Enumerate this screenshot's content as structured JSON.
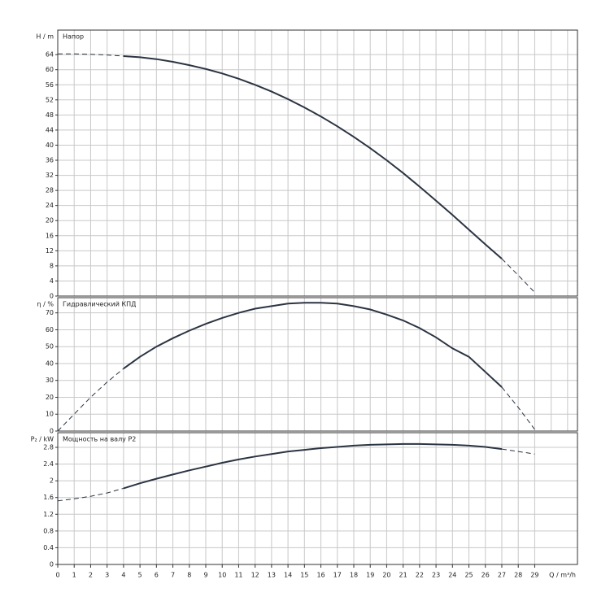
{
  "chart_data": [
    {
      "type": "line",
      "title": "Напор",
      "ylabel": "H / m",
      "color": "#2b3442",
      "x": [
        0,
        1,
        2,
        3,
        4,
        5,
        6,
        7,
        8,
        9,
        10,
        11,
        12,
        13,
        14,
        15,
        16,
        17,
        18,
        19,
        20,
        21,
        22,
        23,
        24,
        25,
        26,
        27,
        28,
        29
      ],
      "values": [
        64.2,
        64.2,
        64.1,
        63.9,
        63.6,
        63.3,
        62.8,
        62.1,
        61.2,
        60.2,
        59.0,
        57.6,
        56.0,
        54.2,
        52.2,
        50.0,
        47.6,
        45.0,
        42.2,
        39.2,
        36.0,
        32.6,
        29.0,
        25.3,
        21.5,
        17.6,
        13.7,
        9.9,
        5.5,
        1.0
      ],
      "solid_xrange": [
        4,
        27
      ],
      "xlim": [
        0,
        31.6
      ],
      "xticks": [
        0,
        1,
        2,
        3,
        4,
        5,
        6,
        7,
        8,
        9,
        10,
        11,
        12,
        13,
        14,
        15,
        16,
        17,
        18,
        19,
        20,
        21,
        22,
        23,
        24,
        25,
        26,
        27,
        28,
        29,
        30,
        31
      ],
      "ylim": [
        0,
        70.5
      ],
      "yticks": [
        0,
        4,
        8,
        12,
        16,
        20,
        24,
        28,
        32,
        36,
        40,
        44,
        48,
        52,
        56,
        60,
        64
      ],
      "grid": true
    },
    {
      "type": "line",
      "title": "Гидравлический КПД",
      "ylabel": "η / %",
      "color": "#2b3442",
      "x": [
        0,
        1,
        2,
        3,
        4,
        5,
        6,
        7,
        8,
        9,
        10,
        11,
        12,
        13,
        14,
        15,
        16,
        17,
        18,
        19,
        20,
        21,
        22,
        23,
        24,
        25,
        26,
        27,
        28,
        29
      ],
      "values": [
        0,
        10,
        20,
        29,
        37,
        44,
        50,
        55,
        59.5,
        63.5,
        67,
        70,
        72.5,
        74,
        75.5,
        76,
        76,
        75.5,
        74,
        72,
        69,
        65.5,
        61,
        55.5,
        49,
        44,
        35,
        26,
        14,
        1
      ],
      "solid_xrange": [
        4,
        27
      ],
      "xlim": [
        0,
        31.6
      ],
      "xticks": [
        0,
        1,
        2,
        3,
        4,
        5,
        6,
        7,
        8,
        9,
        10,
        11,
        12,
        13,
        14,
        15,
        16,
        17,
        18,
        19,
        20,
        21,
        22,
        23,
        24,
        25,
        26,
        27,
        28,
        29,
        30,
        31
      ],
      "ylim": [
        0,
        79
      ],
      "yticks": [
        0,
        10,
        20,
        30,
        40,
        50,
        60,
        70
      ],
      "grid": true
    },
    {
      "type": "line",
      "title": "Мощность на валу P2",
      "ylabel": "P₂ / kW",
      "xlabel": "Q / m³/h",
      "color": "#2b3442",
      "x": [
        0,
        1,
        2,
        3,
        4,
        5,
        6,
        7,
        8,
        9,
        10,
        11,
        12,
        13,
        14,
        15,
        16,
        17,
        18,
        19,
        20,
        21,
        22,
        23,
        24,
        25,
        26,
        27,
        28,
        29
      ],
      "values": [
        1.52,
        1.57,
        1.63,
        1.71,
        1.82,
        1.94,
        2.05,
        2.15,
        2.25,
        2.34,
        2.43,
        2.51,
        2.58,
        2.64,
        2.7,
        2.74,
        2.78,
        2.81,
        2.84,
        2.86,
        2.87,
        2.88,
        2.88,
        2.87,
        2.86,
        2.84,
        2.81,
        2.76,
        2.7,
        2.64
      ],
      "solid_xrange": [
        4,
        27
      ],
      "xlim": [
        0,
        31.6
      ],
      "xticks": [
        0,
        1,
        2,
        3,
        4,
        5,
        6,
        7,
        8,
        9,
        10,
        11,
        12,
        13,
        14,
        15,
        16,
        17,
        18,
        19,
        20,
        21,
        22,
        23,
        24,
        25,
        26,
        27,
        28,
        29
      ],
      "ylim": [
        0,
        3.15
      ],
      "yticks": [
        0,
        0.4,
        0.8,
        1.2,
        1.6,
        2,
        2.4,
        2.8
      ],
      "grid": true
    }
  ]
}
